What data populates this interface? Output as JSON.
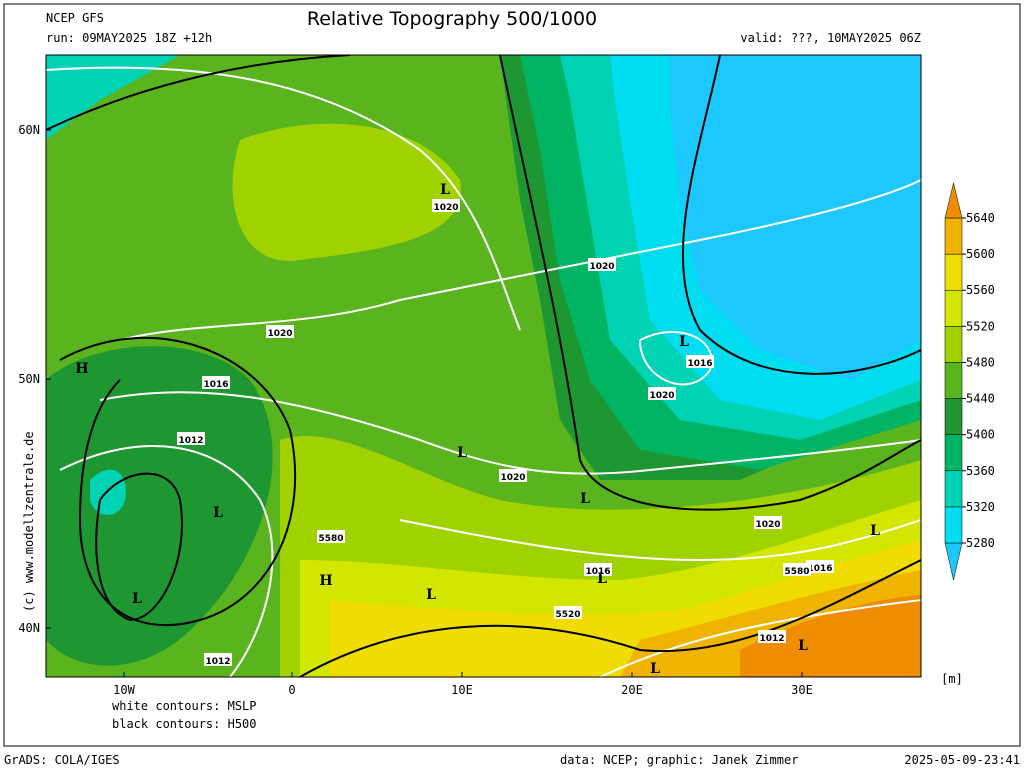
{
  "header": {
    "model": "NCEP GFS",
    "title": "Relative Topography 500/1000",
    "run": "run: 09MAY2025 18Z +12h",
    "valid": "valid: ???, 10MAY2025 06Z"
  },
  "axes": {
    "lat": [
      "60N",
      "50N",
      "40N"
    ],
    "lon": [
      "10W",
      "0",
      "10E",
      "20E",
      "30E"
    ]
  },
  "colorbar": {
    "ticks": [
      5280,
      5320,
      5360,
      5400,
      5440,
      5480,
      5520,
      5560,
      5600,
      5640
    ],
    "colors": [
      "#1ec8ff",
      "#00dcf0",
      "#00d2b4",
      "#00b464",
      "#1e9632",
      "#5ab41e",
      "#a0d200",
      "#d2e600",
      "#f0dc00",
      "#f0b400",
      "#f08c00"
    ],
    "unit": "[m]"
  },
  "contour_labels": [
    "1020",
    "1020",
    "1020",
    "1016",
    "1012",
    "1020",
    "1016",
    "1020",
    "1020",
    "1016",
    "1016",
    "1012",
    "1012",
    "5580",
    "5520",
    "5580"
  ],
  "centers": [
    "L",
    "L",
    "L",
    "L",
    "L",
    "L",
    "H",
    "H",
    "L",
    "L",
    "L",
    "L",
    "L"
  ],
  "legend": {
    "white": "white contours: MSLP",
    "black": "black contours: H500"
  },
  "credit": "(c) www.modellzentrale.de",
  "footer": {
    "left": "GrADS: COLA/IGES",
    "middle": "data: NCEP; graphic: Janek Zimmer",
    "right": "2025-05-09-23:41"
  }
}
